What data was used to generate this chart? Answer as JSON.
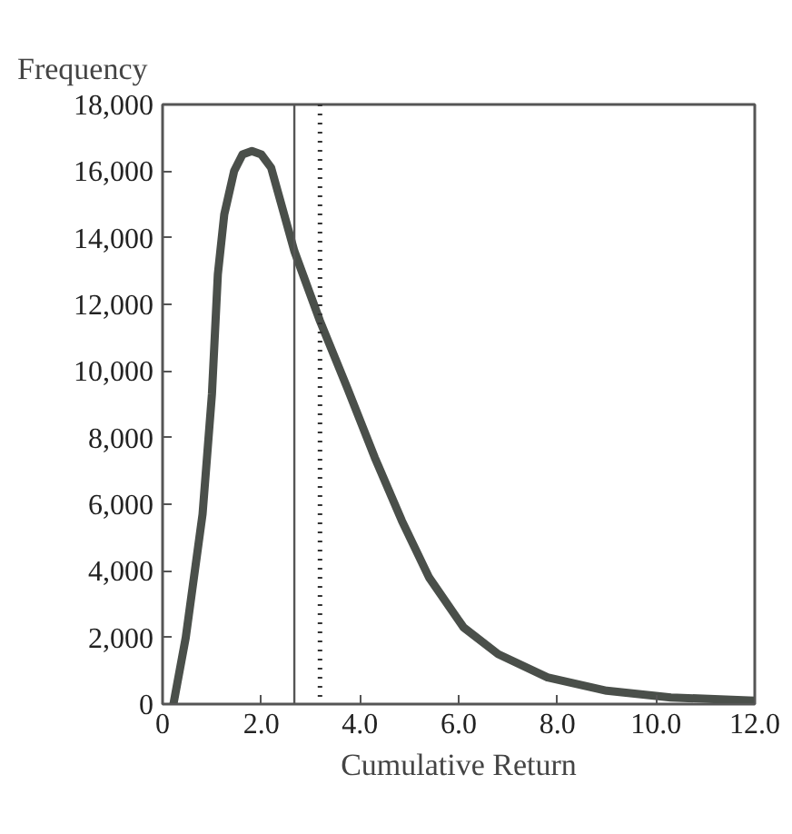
{
  "chart_data": {
    "type": "line",
    "xlabel": "Cumulative Return",
    "ylabel": "Frequency",
    "series": [
      {
        "color": "#4a4f4a",
        "x": [
          0.22,
          0.47,
          0.81,
          1.0,
          1.12,
          1.25,
          1.45,
          1.62,
          1.81,
          2.0,
          2.2,
          2.67,
          3.19,
          3.74,
          4.3,
          4.85,
          5.4,
          6.1,
          6.8,
          7.8,
          9.0,
          10.3,
          12.0
        ],
        "values": [
          0,
          2000,
          5700,
          9300,
          12900,
          14700,
          16000,
          16500,
          16600,
          16500,
          16100,
          13600,
          11500,
          9500,
          7400,
          5500,
          3800,
          2300,
          1500,
          800,
          400,
          200,
          100
        ]
      }
    ],
    "xlim": [
      0,
      12
    ],
    "ylim": [
      0,
      18000
    ],
    "xticks": [
      0,
      {
        "value": 2,
        "label": "2.0"
      },
      {
        "value": 4,
        "label": "4.0"
      },
      {
        "value": 6,
        "label": "6.0"
      },
      {
        "value": 8,
        "label": "8.0"
      },
      {
        "value": 10,
        "label": "10.0"
      },
      {
        "value": 12,
        "label": "12.0"
      }
    ],
    "yticks": [
      0,
      {
        "value": 2000,
        "label": "2,000"
      },
      {
        "value": 4000,
        "label": "4,000"
      },
      {
        "value": 6000,
        "label": "6,000"
      },
      {
        "value": 8000,
        "label": "8,000"
      },
      {
        "value": 10000,
        "label": "10,000"
      },
      {
        "value": 12000,
        "label": "12,000"
      },
      {
        "value": 14000,
        "label": "14,000"
      },
      {
        "value": 16000,
        "label": "16,000"
      },
      {
        "value": 18000,
        "label": "18,000"
      }
    ],
    "ref_lines": [
      {
        "axis": "x",
        "value": 2.67,
        "line_style": "solid",
        "color": "#555555"
      },
      {
        "axis": "x",
        "value": 3.19,
        "line_style": "dotted",
        "color": "#333333"
      }
    ],
    "grid": false,
    "marker": "none",
    "line_style": "solid"
  }
}
